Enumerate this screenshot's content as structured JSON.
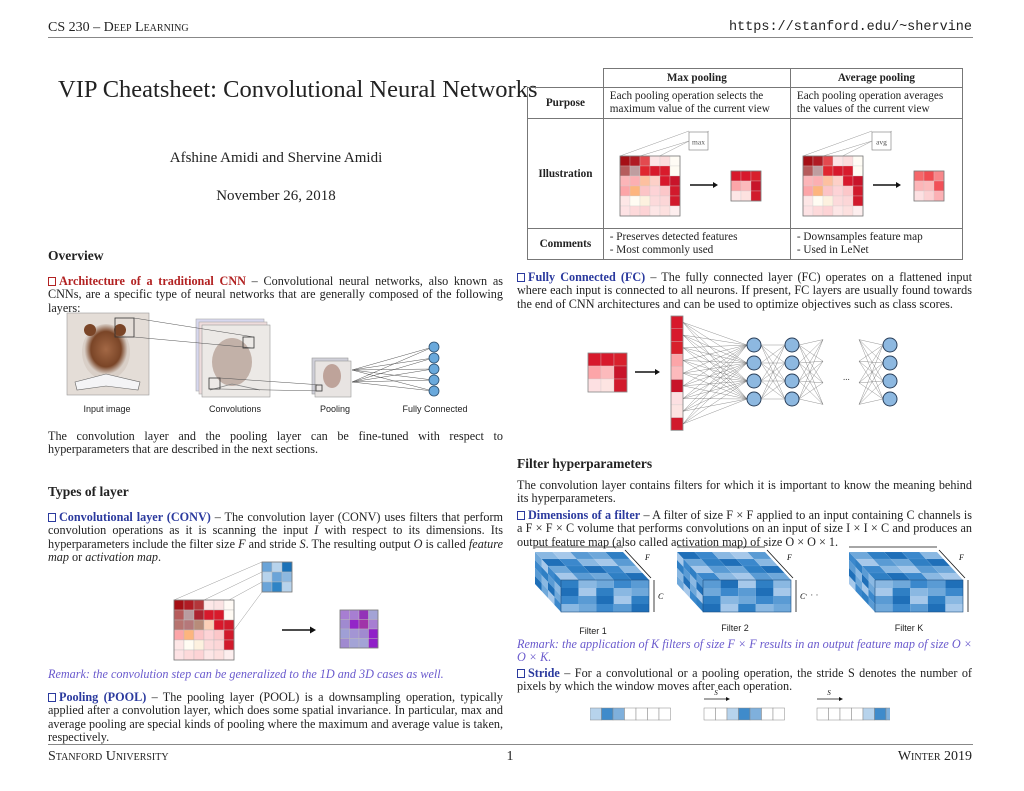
{
  "header": {
    "course": "CS 230 – Deep Learning",
    "url": "https://stanford.edu/~shervine"
  },
  "title": "VIP Cheatsheet: Convolutional Neural Networks",
  "authors": "Afshine Amidi and Shervine Amidi",
  "date": "November 26, 2018",
  "overview": {
    "heading": "Overview",
    "arch_keyword": "Architecture of a traditional CNN",
    "arch_text": " – Convolutional neural networks, also known as CNNs, are a specific type of neural networks that are generally composed of the following layers:",
    "figure_labels": [
      "Input image",
      "Convolutions",
      "Pooling",
      "Fully Connected"
    ],
    "after_text": "The convolution layer and the pooling layer can be fine-tuned with respect to hyperparameters that are described in the next sections."
  },
  "types": {
    "heading": "Types of layer",
    "conv_keyword": "Convolutional layer (CONV)",
    "conv_text_1": " – The convolution layer (CONV) uses filters that perform convolution operations as it is scanning the input ",
    "conv_I": "I",
    "conv_text_2": " with respect to its dimensions. Its hyperparameters include the filter size ",
    "conv_F": "F",
    "conv_text_3": " and stride ",
    "conv_S": "S",
    "conv_text_4": ". The resulting output ",
    "conv_O": "O",
    "conv_text_5": " is called ",
    "conv_fm": "feature map",
    "conv_or": " or ",
    "conv_am": "activation map",
    "conv_end": ".",
    "remark": "Remark: the convolution step can be generalized to the 1D and 3D cases as well.",
    "pool_keyword": "Pooling (POOL)",
    "pool_text": " – The pooling layer (POOL) is a downsampling operation, typically applied after a convolution layer, which does some spatial invariance. In particular, max and average pooling are special kinds of pooling where the maximum and average value is taken, respectively."
  },
  "pool_table": {
    "col_headers": [
      "Max pooling",
      "Average pooling"
    ],
    "rows": [
      {
        "label": "Purpose",
        "max": "Each pooling operation selects the maximum value of the current view",
        "avg": "Each pooling operation averages the values of the current view"
      },
      {
        "label": "Illustration",
        "max": "max",
        "avg": "avg"
      },
      {
        "label": "Comments",
        "max": [
          "- Preserves detected features",
          "- Most commonly used"
        ],
        "avg": [
          "- Downsamples feature map",
          "- Used in LeNet"
        ]
      }
    ]
  },
  "fc": {
    "keyword": "Fully Connected (FC)",
    "text": " – The fully connected layer (FC) operates on a flattened input where each input is connected to all neurons. If present, FC layers are usually found towards the end of CNN architectures and can be used to optimize objectives such as class scores.",
    "ellipsis": "..."
  },
  "filter": {
    "heading": "Filter hyperparameters",
    "intro": "The convolution layer contains filters for which it is important to know the meaning behind its hyperparameters.",
    "dim_keyword": "Dimensions of a filter",
    "dim_text": " – A filter of size F × F applied to an input containing C channels is a F × F × C volume that performs convolutions on an input of size I × I × C and produces an output feature map (also called activation map) of size O × O × 1.",
    "filter_labels": [
      "Filter 1",
      "Filter 2",
      "Filter K"
    ],
    "dim_F": "F",
    "dim_C": "C",
    "dots": "· · ·",
    "remark": "Remark: the application of K filters of size F × F results in an output feature map of size O × O × K.",
    "stride_keyword": "Stride",
    "stride_text": " – For a convolutional or a pooling operation, the stride S denotes the number of pixels by which the window moves after each operation.",
    "stride_label": "S"
  },
  "footer": {
    "left": "Stanford University",
    "page": "1",
    "right": "Winter 2019"
  },
  "colors": {
    "red_keyword": "#b22222",
    "blue_keyword": "#2b3a9e",
    "remark": "#6a5acd",
    "neuron_fill": "#8db8e0"
  }
}
